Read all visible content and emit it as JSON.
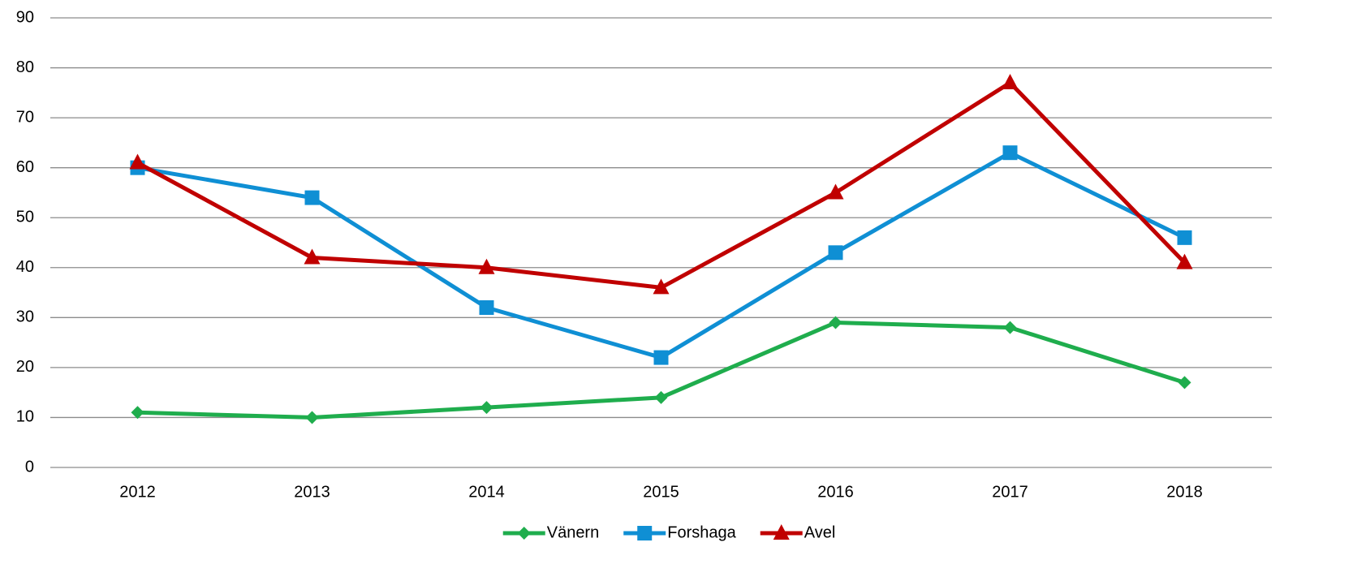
{
  "chart_data": {
    "type": "line",
    "categories": [
      "2012",
      "2013",
      "2014",
      "2015",
      "2016",
      "2017",
      "2018"
    ],
    "series": [
      {
        "name": "Vänern",
        "color": "#1fad4d",
        "marker": "diamond",
        "values": [
          11,
          10,
          12,
          14,
          29,
          28,
          17
        ]
      },
      {
        "name": "Forshaga",
        "color": "#0f8fd4",
        "marker": "square",
        "values": [
          60,
          54,
          32,
          22,
          43,
          63,
          46
        ]
      },
      {
        "name": "Avel",
        "color": "#c00000",
        "marker": "triangle",
        "values": [
          61,
          42,
          40,
          36,
          55,
          77,
          41
        ]
      }
    ],
    "ylim": [
      0,
      90
    ],
    "yticks": [
      0,
      10,
      20,
      30,
      40,
      50,
      60,
      70,
      80,
      90
    ],
    "grid": true,
    "legend": "bottom"
  }
}
